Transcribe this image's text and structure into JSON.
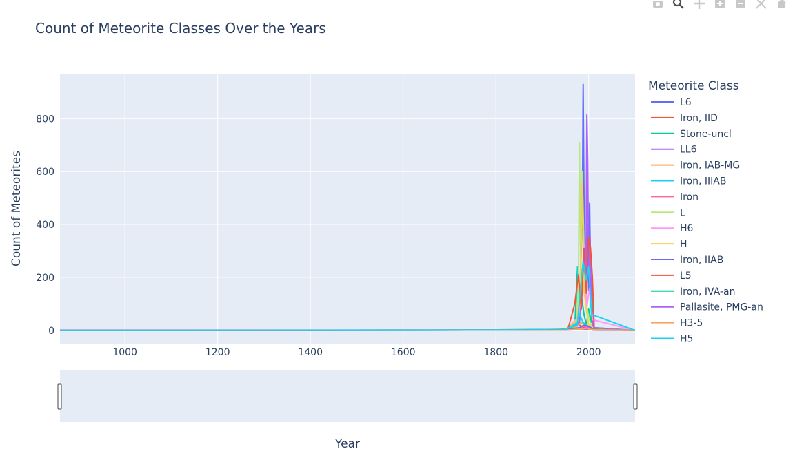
{
  "toolbar": {
    "icons": [
      "camera-icon",
      "zoom-icon",
      "pan-icon",
      "zoom-in-icon",
      "zoom-out-icon",
      "autoscale-icon",
      "home-icon"
    ]
  },
  "chart_data": {
    "type": "line",
    "title": "Count of Meteorite Classes Over the Years",
    "xlabel": "Year",
    "ylabel": "Count of Meteorites",
    "xlim": [
      860,
      2100
    ],
    "ylim": [
      -50,
      970
    ],
    "xticks": [
      1000,
      1200,
      1400,
      1600,
      1800,
      2000
    ],
    "xtick_labels": [
      "1000",
      "1200",
      "1400",
      "1600",
      "1800",
      "2000"
    ],
    "yticks": [
      0,
      200,
      400,
      600,
      800
    ],
    "ytick_labels": [
      "0",
      "200",
      "400",
      "600",
      "800"
    ],
    "grid": true,
    "legend_title": "Meteorite Class",
    "legend_position": "right",
    "range_slider": true,
    "series": [
      {
        "name": "L6",
        "color": "#636efa",
        "x": [
          860,
          1100,
          1500,
          1800,
          1950,
          1975,
          1980,
          1984,
          1987,
          1988,
          1990,
          1993,
          1996,
          1998,
          2000,
          2002,
          2004,
          2006,
          2008,
          2010,
          2100
        ],
        "y": [
          1,
          1,
          1,
          2,
          3,
          40,
          120,
          300,
          620,
          930,
          500,
          250,
          180,
          400,
          150,
          480,
          200,
          80,
          30,
          5,
          1
        ]
      },
      {
        "name": "Iron, IID",
        "color": "#EF553B",
        "x": [
          860,
          1400,
          1490,
          1700,
          1900,
          1950,
          1965,
          1975,
          1980,
          1990,
          1998,
          2004,
          2010,
          2100
        ],
        "y": [
          0,
          0,
          0,
          1,
          2,
          2,
          5,
          40,
          20,
          10,
          5,
          3,
          1,
          0
        ]
      },
      {
        "name": "Stone-uncl",
        "color": "#00cc96",
        "x": [
          860,
          1700,
          1900,
          1950,
          1970,
          1976,
          1980,
          1985,
          1990,
          1995,
          2000,
          2005,
          2008,
          2010,
          2100
        ],
        "y": [
          0,
          1,
          3,
          5,
          10,
          240,
          30,
          120,
          60,
          20,
          80,
          30,
          120,
          10,
          0
        ]
      },
      {
        "name": "LL6",
        "color": "#ab63fa",
        "x": [
          860,
          1500,
          1800,
          1950,
          1978,
          1982,
          1986,
          1990,
          1994,
          1996,
          1998,
          2000,
          2003,
          2006,
          2010,
          2100
        ],
        "y": [
          0,
          0,
          1,
          2,
          20,
          60,
          150,
          300,
          120,
          815,
          630,
          200,
          350,
          100,
          10,
          0
        ]
      },
      {
        "name": "Iron, IAB-MG",
        "color": "#FFA15A",
        "x": [
          860,
          1600,
          1800,
          1950,
          1975,
          1985,
          1995,
          2005,
          2100
        ],
        "y": [
          0,
          0,
          1,
          2,
          15,
          30,
          20,
          5,
          0
        ]
      },
      {
        "name": "Iron, IIIAB",
        "color": "#19d3f3",
        "x": [
          860,
          1580,
          1800,
          1950,
          1975,
          1977,
          1980,
          1988,
          1996,
          2004,
          2010,
          2100
        ],
        "y": [
          0,
          0,
          1,
          3,
          20,
          240,
          60,
          30,
          20,
          10,
          2,
          0
        ]
      },
      {
        "name": "Iron",
        "color": "#FF6692",
        "x": [
          860,
          1700,
          1900,
          1950,
          1980,
          1990,
          2000,
          2010,
          2100
        ],
        "y": [
          0,
          1,
          2,
          3,
          8,
          15,
          10,
          4,
          1
        ]
      },
      {
        "name": "L",
        "color": "#B6E880",
        "x": [
          860,
          1650,
          1800,
          1950,
          1974,
          1978,
          1980,
          1983,
          1986,
          1990,
          1995,
          2000,
          2005,
          2010,
          2100
        ],
        "y": [
          0,
          1,
          1,
          2,
          30,
          180,
          710,
          200,
          600,
          300,
          100,
          50,
          20,
          5,
          0
        ]
      },
      {
        "name": "H6",
        "color": "#FF97FF",
        "x": [
          860,
          1700,
          1900,
          1950,
          1978,
          1984,
          1990,
          1996,
          2002,
          2008,
          2100
        ],
        "y": [
          0,
          1,
          2,
          3,
          50,
          160,
          320,
          90,
          160,
          40,
          0
        ]
      },
      {
        "name": "H",
        "color": "#FECB52",
        "x": [
          860,
          1750,
          1900,
          1950,
          1976,
          1982,
          1986,
          1990,
          1995,
          2000,
          2010,
          2100
        ],
        "y": [
          0,
          1,
          2,
          3,
          40,
          200,
          560,
          150,
          80,
          20,
          5,
          0
        ]
      },
      {
        "name": "Iron, IIAB",
        "color": "#636efa",
        "x": [
          860,
          1800,
          1950,
          1980,
          1990,
          2000,
          2010,
          2100
        ],
        "y": [
          0,
          1,
          2,
          10,
          20,
          15,
          5,
          0
        ]
      },
      {
        "name": "L5",
        "color": "#EF553B",
        "x": [
          860,
          1800,
          1940,
          1955,
          1970,
          1978,
          1984,
          1990,
          1995,
          2000,
          2004,
          2008,
          2012,
          2100
        ],
        "y": [
          0,
          1,
          2,
          3,
          100,
          210,
          80,
          310,
          140,
          350,
          310,
          200,
          2,
          0
        ]
      },
      {
        "name": "Iron, IVA-an",
        "color": "#00cc96",
        "x": [
          860,
          1800,
          1950,
          1985,
          2000,
          2100
        ],
        "y": [
          0,
          1,
          2,
          5,
          4,
          0
        ]
      },
      {
        "name": "Pallasite, PMG-an",
        "color": "#ab63fa",
        "x": [
          860,
          1850,
          1950,
          1990,
          2005,
          2100
        ],
        "y": [
          0,
          1,
          1,
          3,
          2,
          0
        ]
      },
      {
        "name": "H3-5",
        "color": "#FFA15A",
        "x": [
          860,
          1850,
          1950,
          1985,
          1995,
          2005,
          2100
        ],
        "y": [
          0,
          1,
          1,
          5,
          8,
          3,
          0
        ]
      },
      {
        "name": "H5",
        "color": "#19d3f3",
        "x": [
          860,
          1800,
          1950,
          1976,
          1982,
          1988,
          1994,
          2000,
          2006,
          2100
        ],
        "y": [
          0,
          1,
          2,
          30,
          150,
          260,
          190,
          240,
          60,
          0
        ]
      }
    ]
  }
}
